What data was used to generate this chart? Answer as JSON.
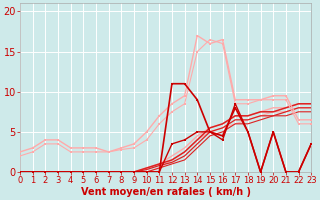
{
  "background_color": "#ceeaea",
  "grid_color": "#ffffff",
  "xlabel": "Vent moyen/en rafales ( km/h )",
  "xlabel_color": "#cc0000",
  "xlabel_fontsize": 7,
  "tick_color": "#cc0000",
  "tick_fontsize": 6,
  "ylim": [
    0,
    21
  ],
  "xlim": [
    0,
    23
  ],
  "yticks": [
    0,
    5,
    10,
    15,
    20
  ],
  "xticks": [
    0,
    1,
    2,
    3,
    4,
    5,
    6,
    7,
    8,
    9,
    10,
    11,
    12,
    13,
    14,
    15,
    16,
    17,
    18,
    19,
    20,
    21,
    22,
    23
  ],
  "lines": [
    {
      "x": [
        0,
        1,
        2,
        3,
        4,
        5,
        6,
        7,
        8,
        9,
        10,
        11,
        12,
        13,
        14,
        15,
        16,
        17,
        18,
        19,
        20,
        21,
        22,
        23
      ],
      "y": [
        0,
        0,
        0,
        0,
        0,
        0,
        0,
        0,
        0,
        0,
        0,
        0,
        11,
        11,
        9,
        5,
        4.5,
        8,
        5,
        0,
        5,
        0,
        0,
        3.5
      ],
      "color": "#cc0000",
      "lw": 1.2,
      "marker": "s",
      "ms": 2.0,
      "zorder": 5
    },
    {
      "x": [
        0,
        1,
        2,
        3,
        4,
        5,
        6,
        7,
        8,
        9,
        10,
        11,
        12,
        13,
        14,
        15,
        16,
        17,
        18,
        19,
        20,
        21,
        22,
        23
      ],
      "y": [
        0,
        0,
        0,
        0,
        0,
        0,
        0,
        0,
        0,
        0,
        0,
        0,
        3.5,
        4,
        5,
        5,
        4,
        8.5,
        5,
        0,
        5,
        0,
        0,
        3.5
      ],
      "color": "#cc0000",
      "lw": 1.0,
      "marker": "s",
      "ms": 1.5,
      "zorder": 5
    },
    {
      "x": [
        0,
        1,
        2,
        3,
        4,
        5,
        6,
        7,
        8,
        9,
        10,
        11,
        12,
        13,
        14,
        15,
        16,
        17,
        18,
        19,
        20,
        21,
        22,
        23
      ],
      "y": [
        0,
        0,
        0,
        0,
        0,
        0,
        0,
        0,
        0,
        0,
        0.5,
        1,
        1.5,
        2.5,
        4,
        5.5,
        6,
        7,
        7,
        7.5,
        7.5,
        8,
        8.5,
        8.5
      ],
      "color": "#dd2222",
      "lw": 1.1,
      "marker": null,
      "ms": 0,
      "zorder": 3
    },
    {
      "x": [
        0,
        1,
        2,
        3,
        4,
        5,
        6,
        7,
        8,
        9,
        10,
        11,
        12,
        13,
        14,
        15,
        16,
        17,
        18,
        19,
        20,
        21,
        22,
        23
      ],
      "y": [
        0,
        0,
        0,
        0,
        0,
        0,
        0,
        0,
        0,
        0,
        0.3,
        0.8,
        1.2,
        2,
        3.5,
        5,
        5.5,
        6.5,
        6.5,
        7,
        7,
        7.5,
        8,
        8
      ],
      "color": "#dd2222",
      "lw": 0.9,
      "marker": null,
      "ms": 0,
      "zorder": 3
    },
    {
      "x": [
        0,
        1,
        2,
        3,
        4,
        5,
        6,
        7,
        8,
        9,
        10,
        11,
        12,
        13,
        14,
        15,
        16,
        17,
        18,
        19,
        20,
        21,
        22,
        23
      ],
      "y": [
        0,
        0,
        0,
        0,
        0,
        0,
        0,
        0,
        0,
        0,
        0,
        0.5,
        1,
        1.5,
        3,
        4.5,
        5,
        6,
        6,
        6.5,
        7,
        7,
        7.5,
        7.5
      ],
      "color": "#dd2222",
      "lw": 0.8,
      "marker": null,
      "ms": 0,
      "zorder": 3
    },
    {
      "x": [
        0,
        1,
        2,
        3,
        4,
        5,
        6,
        7,
        8,
        9,
        10,
        11,
        12,
        13,
        14,
        15,
        16,
        17,
        18,
        19,
        20,
        21,
        22,
        23
      ],
      "y": [
        2.5,
        3,
        4,
        4,
        3,
        3,
        3,
        2.5,
        3,
        3.5,
        5,
        7,
        8.5,
        9.5,
        17,
        16,
        16.5,
        9,
        9,
        9,
        9.5,
        9.5,
        6.5,
        6.5
      ],
      "color": "#ffaaaa",
      "lw": 1.0,
      "marker": "s",
      "ms": 2.0,
      "zorder": 4
    },
    {
      "x": [
        0,
        1,
        2,
        3,
        4,
        5,
        6,
        7,
        8,
        9,
        10,
        11,
        12,
        13,
        14,
        15,
        16,
        17,
        18,
        19,
        20,
        21,
        22,
        23
      ],
      "y": [
        2,
        2.5,
        3.5,
        3.5,
        2.5,
        2.5,
        2.5,
        2.5,
        2.8,
        3,
        4,
        6,
        7.5,
        8.5,
        15,
        16.5,
        16,
        8.5,
        8.5,
        9,
        9,
        9,
        6,
        6
      ],
      "color": "#ffaaaa",
      "lw": 0.8,
      "marker": "s",
      "ms": 1.5,
      "zorder": 4
    },
    {
      "x": [
        0,
        1,
        2,
        3,
        4,
        5,
        6,
        7,
        8,
        9,
        10,
        11,
        12,
        13,
        14,
        15,
        16,
        17,
        18,
        19,
        20,
        21,
        22,
        23
      ],
      "y": [
        0,
        0,
        0,
        0,
        0,
        0,
        0,
        0,
        0,
        0,
        0.5,
        1,
        2,
        3,
        4.5,
        5.5,
        6,
        7,
        7,
        7.5,
        8,
        8,
        8.5,
        8.5
      ],
      "color": "#ffaaaa",
      "lw": 1.0,
      "marker": null,
      "ms": 0,
      "zorder": 2
    },
    {
      "x": [
        0,
        1,
        2,
        3,
        4,
        5,
        6,
        7,
        8,
        9,
        10,
        11,
        12,
        13,
        14,
        15,
        16,
        17,
        18,
        19,
        20,
        21,
        22,
        23
      ],
      "y": [
        0,
        0,
        0,
        0,
        0,
        0,
        0,
        0,
        0,
        0,
        0,
        0.5,
        1.5,
        2.5,
        4,
        5,
        5.5,
        6,
        6.5,
        7,
        7.5,
        7.5,
        8,
        8
      ],
      "color": "#ffaaaa",
      "lw": 0.8,
      "marker": null,
      "ms": 0,
      "zorder": 2
    }
  ]
}
